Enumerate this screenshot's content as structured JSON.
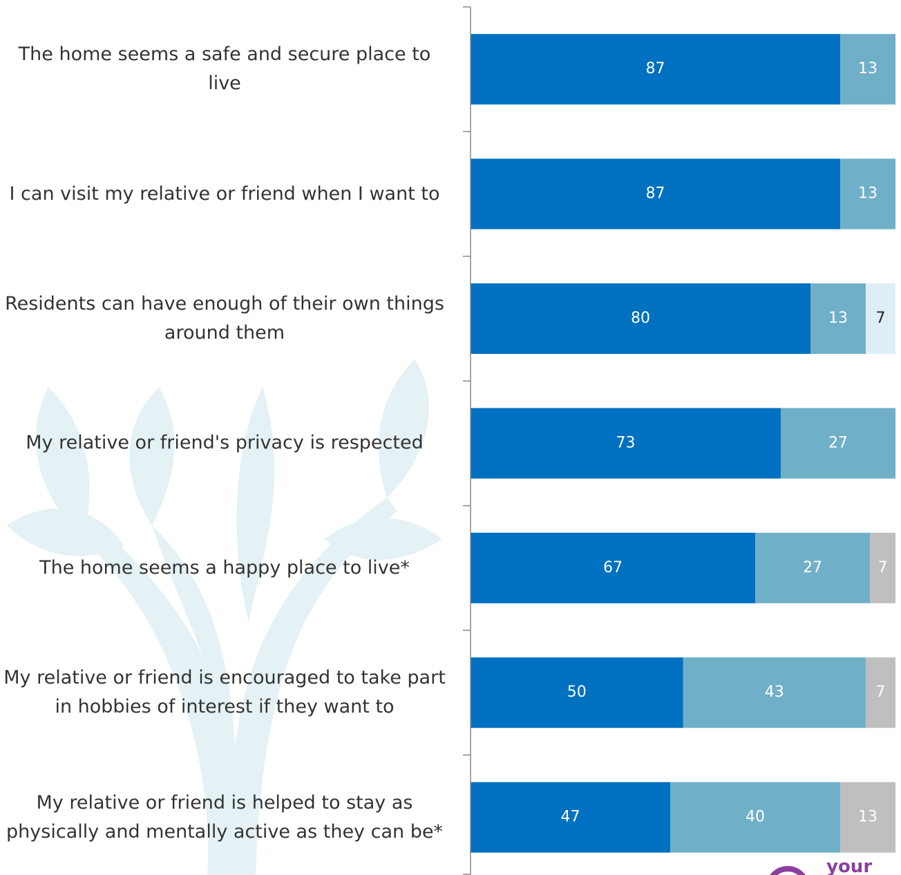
{
  "chart_data": {
    "type": "stacked-bar-horizontal",
    "categories": [
      "The home seems a safe and secure place to live",
      "I can visit my relative or friend when I want to",
      "Residents can have enough of their own things around them",
      "My relative or friend's privacy is respected",
      "The home seems a happy place to live*",
      "My relative or friend is encouraged to take part in hobbies of interest if they want to",
      "My relative or friend is helped to stay as physically and mentally active as they can be*"
    ],
    "series": [
      {
        "color": "#0070c0",
        "label_color": "#ffffff",
        "values": [
          87,
          87,
          80,
          73,
          67,
          50,
          47
        ]
      },
      {
        "color": "#70afc8",
        "label_color": "#ffffff",
        "values": [
          13,
          13,
          13,
          27,
          27,
          43,
          40
        ]
      },
      {
        "color": "#deeef5",
        "label_color": "#222222",
        "values": [
          null,
          null,
          7,
          null,
          null,
          null,
          null
        ]
      },
      {
        "color": "#bfbfbf",
        "label_color": "#ffffff",
        "values": [
          null,
          null,
          null,
          null,
          7,
          7,
          13
        ]
      }
    ],
    "xlim": [
      0,
      100
    ],
    "logo_text": "your"
  }
}
